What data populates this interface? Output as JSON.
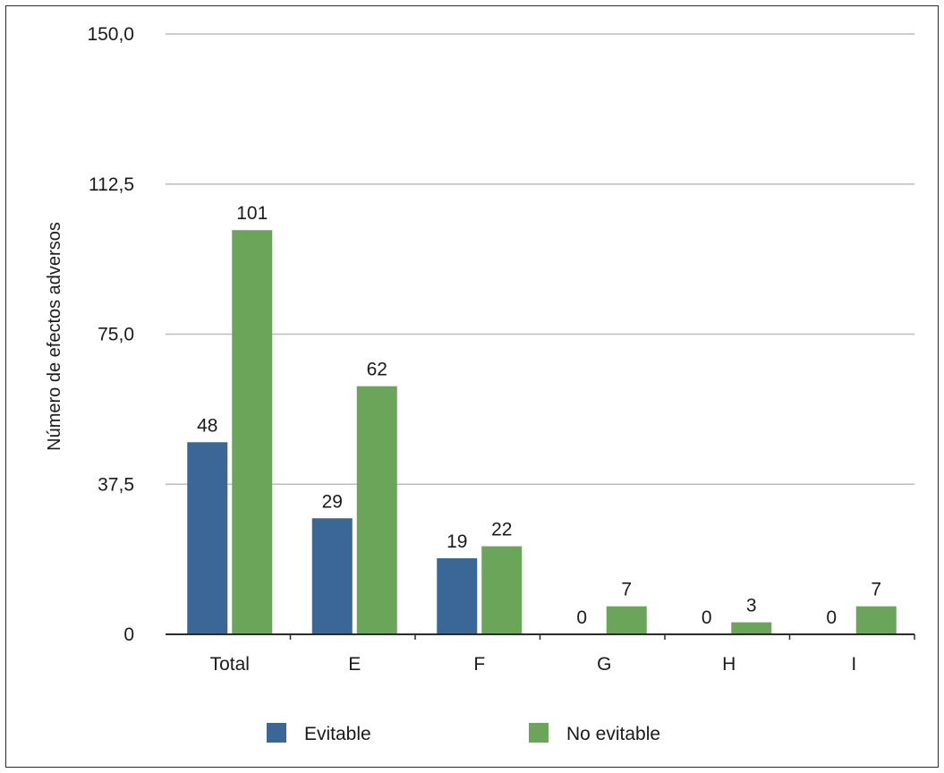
{
  "chart_data": {
    "type": "bar",
    "ylabel": "Número de efectos adversos",
    "xlabel": "",
    "ylim": [
      0,
      150
    ],
    "yticks": [
      0,
      37.5,
      75,
      112.5,
      150
    ],
    "ytick_labels": [
      "0",
      "37,5",
      "75,0",
      "112,5",
      "150,0"
    ],
    "categories": [
      "Total",
      "E",
      "F",
      "G",
      "H",
      "I"
    ],
    "series": [
      {
        "name": "Evitable",
        "color": "#3a6796",
        "values": [
          48,
          29,
          19,
          0,
          0,
          0
        ]
      },
      {
        "name": "No evitable",
        "color": "#6aa55a",
        "values": [
          101,
          62,
          22,
          7,
          3,
          7
        ]
      }
    ],
    "grid": true,
    "legend_position": "bottom"
  }
}
